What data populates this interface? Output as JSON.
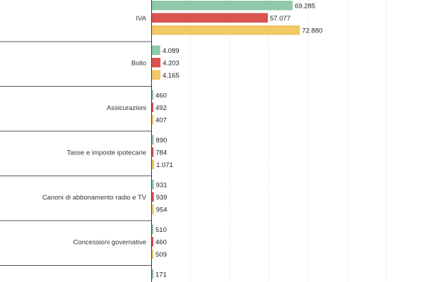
{
  "chart_data": {
    "type": "bar",
    "orientation": "horizontal",
    "grouped": true,
    "categories": [
      "IVA",
      "Bollo",
      "Assicurazioni",
      "Tasse e imposte ipotecarie",
      "Canoni di abbonamento radio e TV",
      "Concessioni governative",
      ""
    ],
    "series": [
      {
        "color": "#8ecaa7",
        "values": [
          69285,
          4089,
          460,
          890,
          931,
          510,
          171
        ]
      },
      {
        "color": "#d9534f",
        "values": [
          57077,
          4203,
          492,
          784,
          939,
          460,
          null
        ]
      },
      {
        "color": "#f1c863",
        "values": [
          72880,
          4165,
          407,
          1071,
          954,
          509,
          null
        ]
      }
    ],
    "value_labels": [
      [
        "69.285",
        "57.077",
        "72.880"
      ],
      [
        "4.089",
        "4.203",
        "4.165"
      ],
      [
        "460",
        "492",
        "407"
      ],
      [
        "890",
        "784",
        "1.071"
      ],
      [
        "931",
        "939",
        "954"
      ],
      [
        "510",
        "460",
        "509"
      ],
      [
        "171",
        "",
        ""
      ]
    ],
    "xlim": [
      0,
      150000
    ],
    "grid": true,
    "legend": "none"
  }
}
